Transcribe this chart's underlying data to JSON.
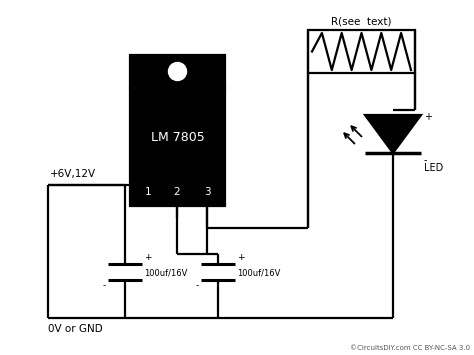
{
  "bg_color": "#ffffff",
  "line_color": "#000000",
  "copyright": "©CircuitsDIY.com CC BY-NC-SA 3.0",
  "voltage_label": "+6V,12V",
  "gnd_label": "0V or GND",
  "ic_label": "LM 7805",
  "resistor_label": "R(see  text)",
  "led_label": "LED",
  "cap_label": "100uf/16V",
  "figw": 4.74,
  "figh": 3.55,
  "dpi": 100
}
